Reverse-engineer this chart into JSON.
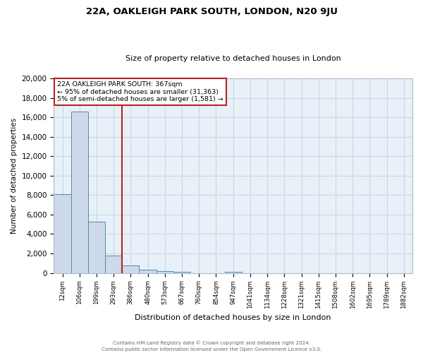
{
  "title": "22A, OAKLEIGH PARK SOUTH, LONDON, N20 9JU",
  "subtitle": "Size of property relative to detached houses in London",
  "xlabel": "Distribution of detached houses by size in London",
  "ylabel": "Number of detached properties",
  "bar_labels": [
    "12sqm",
    "106sqm",
    "199sqm",
    "293sqm",
    "386sqm",
    "480sqm",
    "573sqm",
    "667sqm",
    "760sqm",
    "854sqm",
    "947sqm",
    "1041sqm",
    "1134sqm",
    "1228sqm",
    "1321sqm",
    "1415sqm",
    "1508sqm",
    "1602sqm",
    "1695sqm",
    "1789sqm",
    "1882sqm"
  ],
  "bar_values": [
    8100,
    16600,
    5300,
    1800,
    800,
    350,
    200,
    150,
    0,
    0,
    150,
    0,
    0,
    0,
    0,
    0,
    0,
    0,
    0,
    0,
    0
  ],
  "bar_color": "#cddaea",
  "bar_edge_color": "#5588aa",
  "grid_color": "#c8d8e8",
  "background_color": "#e8f0f8",
  "vline_color": "#bb2222",
  "annotation_line1": "22A OAKLEIGH PARK SOUTH: 367sqm",
  "annotation_line2": "← 95% of detached houses are smaller (31,363)",
  "annotation_line3": "5% of semi-detached houses are larger (1,581) →",
  "ylim": [
    0,
    20000
  ],
  "yticks": [
    0,
    2000,
    4000,
    6000,
    8000,
    10000,
    12000,
    14000,
    16000,
    18000,
    20000
  ],
  "footer_line1": "Contains HM Land Registry data © Crown copyright and database right 2024.",
  "footer_line2": "Contains public sector information licensed under the Open Government Licence v3.0."
}
